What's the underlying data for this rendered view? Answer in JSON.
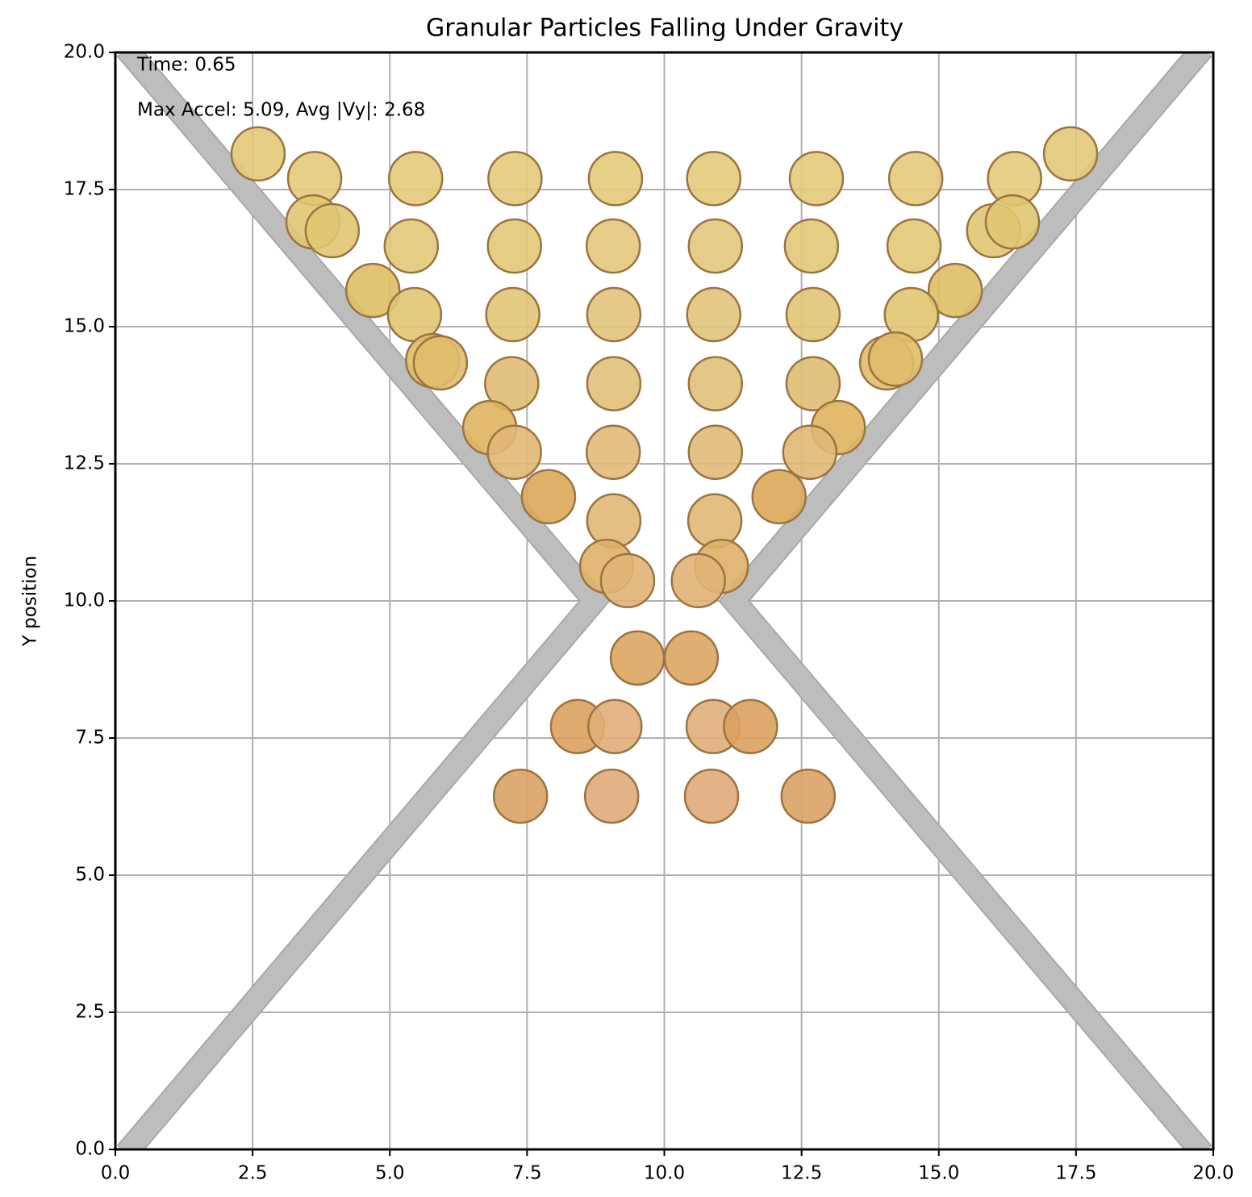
{
  "chart_data": {
    "type": "scatter",
    "title": "Granular Particles Falling Under Gravity",
    "ylabel": "Y position",
    "annotations": [
      "Time: 0.65",
      "Max Accel: 5.09, Avg |Vy|: 2.68"
    ],
    "x": [
      2.6,
      17.4,
      3.63,
      5.47,
      7.28,
      9.11,
      10.9,
      12.77,
      14.58,
      16.38,
      3.6,
      3.95,
      16.0,
      16.34,
      5.39,
      7.27,
      9.07,
      10.93,
      12.68,
      14.55,
      4.69,
      15.3,
      5.45,
      7.24,
      9.08,
      10.9,
      12.71,
      14.5,
      5.78,
      5.92,
      14.05,
      14.21,
      7.22,
      9.08,
      10.93,
      12.71,
      6.82,
      13.17,
      7.27,
      9.07,
      10.93,
      12.65,
      7.89,
      12.09,
      9.08,
      10.92,
      8.95,
      11.04,
      9.33,
      10.62,
      9.51,
      10.49,
      8.42,
      9.1,
      10.89,
      11.57,
      7.38,
      9.04,
      10.86,
      12.62
    ],
    "values": [
      18.15,
      18.15,
      17.7,
      17.7,
      17.7,
      17.7,
      17.7,
      17.7,
      17.7,
      17.7,
      16.91,
      16.75,
      16.75,
      16.91,
      16.47,
      16.47,
      16.47,
      16.47,
      16.47,
      16.47,
      15.66,
      15.66,
      15.22,
      15.22,
      15.22,
      15.22,
      15.22,
      15.22,
      14.38,
      14.34,
      14.34,
      14.41,
      13.96,
      13.96,
      13.96,
      13.96,
      13.16,
      13.16,
      12.71,
      12.71,
      12.71,
      12.71,
      11.9,
      11.9,
      11.46,
      11.46,
      10.63,
      10.63,
      10.37,
      10.37,
      8.96,
      8.96,
      7.71,
      7.71,
      7.71,
      7.71,
      6.44,
      6.44,
      6.44,
      6.44
    ],
    "colors": [
      "#e2c878",
      "#e2c878",
      "#e3cb7a",
      "#e3cb7a",
      "#e3cb7a",
      "#e3cb7a",
      "#e3cb7a",
      "#e3cb7a",
      "#e3cb7a",
      "#e3cb7a",
      "#e0c572",
      "#e0c572",
      "#e0c572",
      "#e0c572",
      "#e2c877",
      "#e2c877",
      "#e2c87a",
      "#e2c87a",
      "#e2c877",
      "#e2c877",
      "#dfbe66",
      "#dfbe66",
      "#e1c572",
      "#e1c474",
      "#e2c47a",
      "#e2c47a",
      "#e1c474",
      "#e1c572",
      "#dfbc6a",
      "#dfbc6a",
      "#dfbc6a",
      "#dfbc6a",
      "#e0bd73",
      "#e1c07a",
      "#e1c07a",
      "#e0bd73",
      "#dfb45e",
      "#dfb45e",
      "#e0b873",
      "#e1bb78",
      "#e1bb78",
      "#e0b873",
      "#dda95b",
      "#dda95b",
      "#e1b878",
      "#e1b878",
      "#dfb068",
      "#dfb068",
      "#e0b474",
      "#e0b474",
      "#dca560",
      "#dca560",
      "#dca15e",
      "#e0ae78",
      "#e0ae78",
      "#dca15e",
      "#dca265",
      "#e0aa7a",
      "#e0aa7a",
      "#dca265"
    ],
    "xlim": [
      0,
      20
    ],
    "ylim": [
      0,
      20
    ],
    "xticks": [
      {
        "value": 0,
        "label": "0.0"
      },
      2.5,
      {
        "value": 5,
        "label": "5.0"
      },
      7.5,
      {
        "value": 10,
        "label": "10.0"
      },
      12.5,
      {
        "value": 15,
        "label": "15.0"
      },
      17.5,
      {
        "value": 20,
        "label": "20.0"
      }
    ],
    "yticks": [
      {
        "value": 0,
        "label": "0.0"
      },
      2.5,
      {
        "value": 5,
        "label": "5.0"
      },
      7.5,
      {
        "value": 10,
        "label": "10.0"
      },
      12.5,
      {
        "value": 15,
        "label": "15.0"
      },
      17.5,
      {
        "value": 20,
        "label": "20.0"
      }
    ],
    "grid": true
  }
}
